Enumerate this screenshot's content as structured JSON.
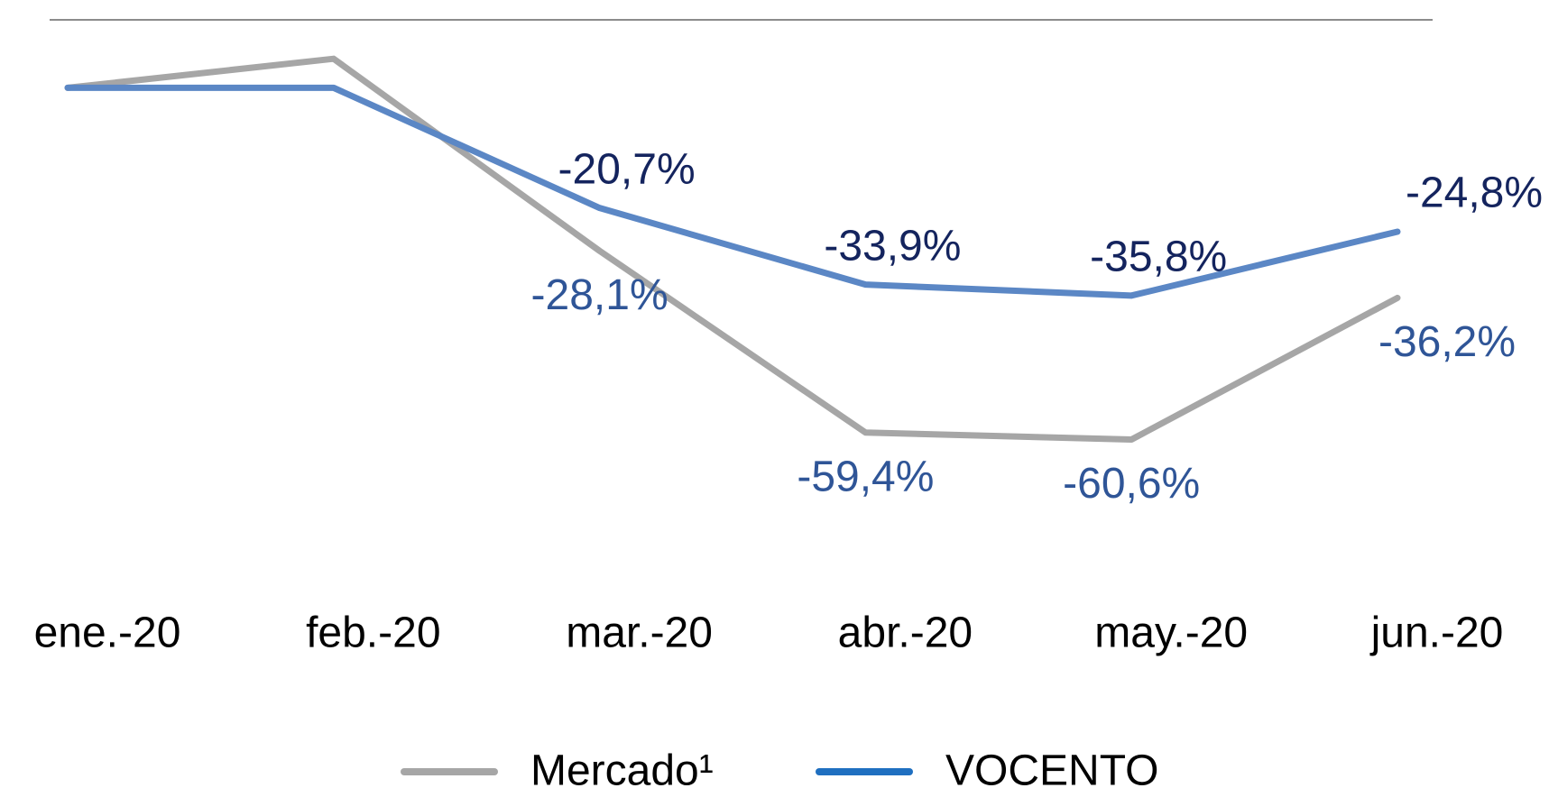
{
  "chart_data": {
    "type": "line",
    "categories": [
      "ene.-20",
      "feb.-20",
      "mar.-20",
      "abr.-20",
      "may.-20",
      "jun.-20"
    ],
    "series": [
      {
        "name": "Mercado¹",
        "color": "#a6a6a6",
        "label_color": "#2f5597",
        "values": [
          0,
          5,
          -28.1,
          -59.4,
          -60.6,
          -36.2
        ],
        "value_labels": [
          null,
          null,
          "-28,1%",
          "-59,4%",
          "-60,6%",
          "-36,2%"
        ]
      },
      {
        "name": "VOCENTO",
        "color": "#5b87c5",
        "legend_color": "#1f6fc0",
        "label_color": "#14245e",
        "values": [
          0,
          0,
          -20.7,
          -33.9,
          -35.8,
          -24.8
        ],
        "value_labels": [
          null,
          null,
          "-20,7%",
          "-33,9%",
          "-35,8%",
          "-24,8%"
        ]
      }
    ],
    "ylim": [
      -70,
      10
    ]
  }
}
